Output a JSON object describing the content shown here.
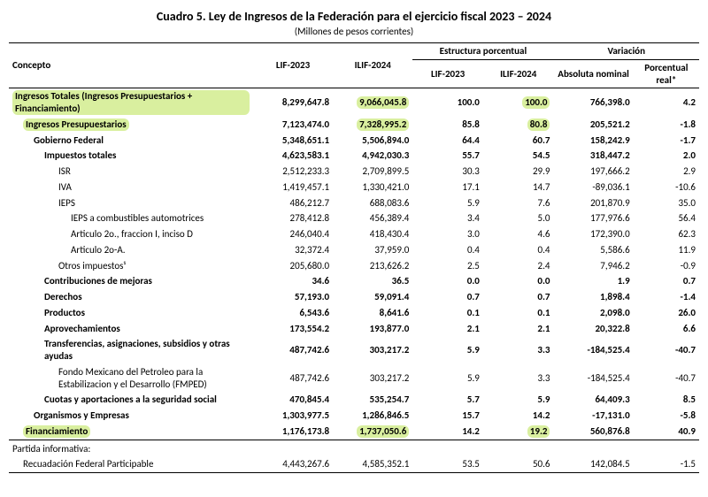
{
  "title": "Cuadro 5. Ley de Ingresos de la Federación para el ejercicio fiscal 2023 – 2024",
  "subtitle": "(Millones de pesos corrientes)",
  "headers": {
    "concept": "Concepto",
    "lif2023": "LIF-2023",
    "ilif2024": "ILIF-2024",
    "struct_group": "Estructura porcentual",
    "struct_lif2023": "LIF-2023",
    "struct_ilif2024": "ILIF-2024",
    "var_group": "Variación",
    "var_abs": "Absoluta nominal",
    "var_real": "Porcentual real*"
  },
  "rows": [
    {
      "label": "Ingresos Totales (Ingresos Presupuestarios + Financiamiento)",
      "indent": 0,
      "bold": true,
      "hl_label": true,
      "v1": "8,299,647.8",
      "v2": "9,066,045.8",
      "hl_v2": true,
      "p1": "100.0",
      "p2": "100.0",
      "hl_p2": true,
      "va": "766,398.0",
      "vr": "4.2"
    },
    {
      "label": "Ingresos Presupuestarios",
      "indent": 1,
      "bold": true,
      "hl_label": true,
      "v1": "7,123,474.0",
      "v2": "7,328,995.2",
      "hl_v2": true,
      "p1": "85.8",
      "p2": "80.8",
      "hl_p2": true,
      "va": "205,521.2",
      "vr": "-1.8"
    },
    {
      "label": "Gobierno Federal",
      "indent": 2,
      "bold": true,
      "v1": "5,348,651.1",
      "v2": "5,506,894.0",
      "p1": "64.4",
      "p2": "60.7",
      "va": "158,242.9",
      "vr": "-1.7"
    },
    {
      "label": "Impuestos totales",
      "indent": 3,
      "bold": true,
      "v1": "4,623,583.1",
      "v2": "4,942,030.3",
      "p1": "55.7",
      "p2": "54.5",
      "va": "318,447.2",
      "vr": "2.0"
    },
    {
      "label": "ISR",
      "indent": 4,
      "v1": "2,512,233.3",
      "v2": "2,709,899.5",
      "p1": "30.3",
      "p2": "29.9",
      "va": "197,666.2",
      "vr": "2.9"
    },
    {
      "label": "IVA",
      "indent": 4,
      "v1": "1,419,457.1",
      "v2": "1,330,421.0",
      "p1": "17.1",
      "p2": "14.7",
      "va": "-89,036.1",
      "vr": "-10.6"
    },
    {
      "label": "IEPS",
      "indent": 4,
      "v1": "486,212.7",
      "v2": "688,083.6",
      "p1": "5.9",
      "p2": "7.6",
      "va": "201,870.9",
      "vr": "35.0"
    },
    {
      "label": "IEPS a combustibles automotrices",
      "indent": 5,
      "v1": "278,412.8",
      "v2": "456,389.4",
      "p1": "3.4",
      "p2": "5.0",
      "va": "177,976.6",
      "vr": "56.4"
    },
    {
      "label": "Articulo 2o., fraccion I, inciso D",
      "indent": 5,
      "sub": true,
      "v1": "246,040.4",
      "v2": "418,430.4",
      "p1": "3.0",
      "p2": "4.6",
      "va": "172,390.0",
      "vr": "62.3"
    },
    {
      "label": "Articulo 2o-A.",
      "indent": 5,
      "sub": true,
      "v1": "32,372.4",
      "v2": "37,959.0",
      "p1": "0.4",
      "p2": "0.4",
      "va": "5,586.6",
      "vr": "11.9"
    },
    {
      "label": "Otros impuestos¹",
      "indent": 4,
      "v1": "205,680.0",
      "v2": "213,626.2",
      "p1": "2.5",
      "p2": "2.4",
      "va": "7,946.2",
      "vr": "-0.9"
    },
    {
      "label": "Contribuciones de mejoras",
      "indent": 3,
      "bold": true,
      "v1": "34.6",
      "v2": "36.5",
      "p1": "0.0",
      "p2": "0.0",
      "va": "1.9",
      "vr": "0.7"
    },
    {
      "label": "Derechos",
      "indent": 3,
      "bold": true,
      "v1": "57,193.0",
      "v2": "59,091.4",
      "p1": "0.7",
      "p2": "0.7",
      "va": "1,898.4",
      "vr": "-1.4"
    },
    {
      "label": "Productos",
      "indent": 3,
      "bold": true,
      "v1": "6,543.6",
      "v2": "8,641.6",
      "p1": "0.1",
      "p2": "0.1",
      "va": "2,098.0",
      "vr": "26.0"
    },
    {
      "label": "Aprovechamientos",
      "indent": 3,
      "bold": true,
      "v1": "173,554.2",
      "v2": "193,877.0",
      "p1": "2.1",
      "p2": "2.1",
      "va": "20,322.8",
      "vr": "6.6"
    },
    {
      "label": "Transferencias, asignaciones, subsidios y otras ayudas",
      "indent": 3,
      "bold": true,
      "v1": "487,742.6",
      "v2": "303,217.2",
      "p1": "5.9",
      "p2": "3.3",
      "va": "-184,525.4",
      "vr": "-40.7"
    },
    {
      "label": "Fondo Mexicano del Petroleo para la Estabilizacion y el Desarrollo (FMPED)",
      "indent": 4,
      "v1": "487,742.6",
      "v2": "303,217.2",
      "p1": "5.9",
      "p2": "3.3",
      "va": "-184,525.4",
      "vr": "-40.7"
    },
    {
      "label": "Cuotas y aportaciones a la seguridad social",
      "indent": 3,
      "bold": true,
      "v1": "470,845.4",
      "v2": "535,254.7",
      "p1": "5.7",
      "p2": "5.9",
      "va": "64,409.3",
      "vr": "8.5"
    },
    {
      "label": "Organismos y Empresas",
      "indent": 2,
      "bold": true,
      "v1": "1,303,977.5",
      "v2": "1,286,846.5",
      "p1": "15.7",
      "p2": "14.2",
      "va": "-17,131.0",
      "vr": "-5.8"
    },
    {
      "label": "Financiamiento",
      "indent": 1,
      "bold": true,
      "hl_label": true,
      "v1": "1,176,173.8",
      "v2": "1,737,050.6",
      "hl_v2": true,
      "p1": "14.2",
      "p2": "19.2",
      "hl_p2": true,
      "va": "560,876.8",
      "vr": "40.9"
    }
  ],
  "partida_label": "Partida informativa:",
  "partida_row": {
    "label": "Recuadación Federal Participable",
    "indent": 1,
    "v1": "4,443,267.6",
    "v2": "4,585,352.1",
    "p1": "53.5",
    "p2": "50.6",
    "va": "142,084.5",
    "vr": "-1.5"
  }
}
